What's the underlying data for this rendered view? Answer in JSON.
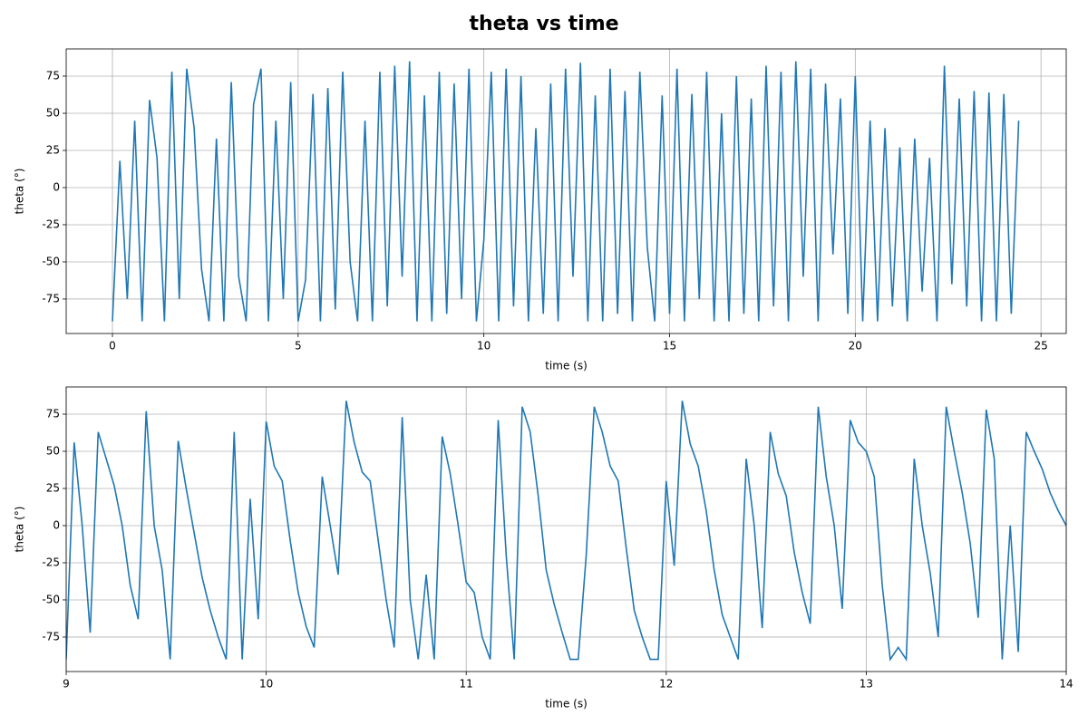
{
  "title": "theta vs time",
  "chart_data": [
    {
      "type": "line",
      "x_label": "time (s)",
      "y_label": "theta (°)",
      "color": "#1f77b4",
      "grid": true,
      "xlim": [
        -1.245,
        25.68
      ],
      "ylim": [
        -98.2,
        93.3
      ],
      "xticks": [
        0,
        5,
        10,
        15,
        20,
        25
      ],
      "yticks": [
        -75,
        -50,
        -25,
        0,
        25,
        50,
        75
      ],
      "x": [
        0,
        0.2,
        0.4,
        0.6,
        0.8,
        1,
        1.2,
        1.4,
        1.6,
        1.8,
        2,
        2.2,
        2.4,
        2.6,
        2.8,
        3,
        3.2,
        3.4,
        3.6,
        3.8,
        4,
        4.2,
        4.4,
        4.6,
        4.8,
        5,
        5.2,
        5.4,
        5.6,
        5.8,
        6,
        6.2,
        6.4,
        6.6,
        6.8,
        7,
        7.2,
        7.4,
        7.6,
        7.8,
        8,
        8.2,
        8.4,
        8.6,
        8.8,
        9,
        9.2,
        9.4,
        9.6,
        9.8,
        10,
        10.2,
        10.4,
        10.6,
        10.8,
        11,
        11.2,
        11.4,
        11.6,
        11.8,
        12,
        12.2,
        12.4,
        12.6,
        12.8,
        13,
        13.2,
        13.4,
        13.6,
        13.8,
        14,
        14.2,
        14.4,
        14.6,
        14.8,
        15,
        15.2,
        15.4,
        15.6,
        15.8,
        16,
        16.2,
        16.4,
        16.6,
        16.8,
        17,
        17.2,
        17.4,
        17.6,
        17.8,
        18,
        18.2,
        18.4,
        18.6,
        18.8,
        19,
        19.2,
        19.4,
        19.6,
        19.8,
        20,
        20.2,
        20.4,
        20.6,
        20.8,
        21,
        21.2,
        21.4,
        21.6,
        21.8,
        22,
        22.2,
        22.4,
        22.6,
        22.8,
        23,
        23.2,
        23.4,
        23.6,
        23.8,
        24,
        24.2,
        24.4
      ],
      "values": [
        -90,
        18,
        -75,
        45,
        -90,
        59,
        20,
        -90,
        78,
        -75,
        80,
        40,
        -55,
        -90,
        33,
        -90,
        71,
        -60,
        -90,
        56,
        80,
        -90,
        45,
        -75,
        71,
        -90,
        -62,
        63,
        -90,
        67,
        -82,
        78,
        -50,
        -90,
        45,
        -90,
        78,
        -80,
        82,
        -60,
        85,
        -90,
        62,
        -90,
        78,
        -85,
        70,
        -75,
        80,
        -90,
        -35,
        78,
        -90,
        80,
        -80,
        75,
        -90,
        40,
        -85,
        70,
        -90,
        80,
        -60,
        84,
        -90,
        62,
        -90,
        80,
        -85,
        65,
        -90,
        78,
        -40,
        -90,
        62,
        -85,
        80,
        -90,
        63,
        -75,
        78,
        -90,
        50,
        -90,
        75,
        -85,
        60,
        -90,
        82,
        -80,
        78,
        -90,
        85,
        -60,
        80,
        -90,
        70,
        -45,
        60,
        -85,
        75,
        -90,
        45,
        -90,
        40,
        -80,
        27,
        -90,
        33,
        -70,
        20,
        -90,
        82,
        -65,
        60,
        -80,
        65,
        -90,
        64,
        -90,
        63,
        -85,
        45
      ]
    },
    {
      "type": "line",
      "x_label": "time (s)",
      "y_label": "theta (°)",
      "color": "#1f77b4",
      "grid": true,
      "xlim": [
        9,
        14
      ],
      "ylim": [
        -98.2,
        93.3
      ],
      "xticks": [
        9,
        10,
        11,
        12,
        13,
        14
      ],
      "yticks": [
        -75,
        -50,
        -25,
        0,
        25,
        50,
        75
      ],
      "x": [
        9,
        9.04,
        9.08,
        9.12,
        9.16,
        9.2,
        9.24,
        9.28,
        9.32,
        9.36,
        9.4,
        9.44,
        9.48,
        9.52,
        9.56,
        9.6,
        9.64,
        9.68,
        9.72,
        9.76,
        9.8,
        9.84,
        9.88,
        9.92,
        9.96,
        10,
        10.04,
        10.08,
        10.12,
        10.16,
        10.2,
        10.24,
        10.28,
        10.32,
        10.36,
        10.4,
        10.44,
        10.48,
        10.52,
        10.56,
        10.6,
        10.64,
        10.68,
        10.72,
        10.76,
        10.8,
        10.84,
        10.88,
        10.92,
        10.96,
        11,
        11.04,
        11.08,
        11.12,
        11.16,
        11.2,
        11.24,
        11.28,
        11.32,
        11.36,
        11.4,
        11.44,
        11.48,
        11.52,
        11.56,
        11.6,
        11.64,
        11.68,
        11.72,
        11.76,
        11.8,
        11.84,
        11.88,
        11.92,
        11.96,
        12,
        12.04,
        12.08,
        12.12,
        12.16,
        12.2,
        12.24,
        12.28,
        12.32,
        12.36,
        12.4,
        12.44,
        12.48,
        12.52,
        12.56,
        12.6,
        12.64,
        12.68,
        12.72,
        12.76,
        12.8,
        12.84,
        12.88,
        12.92,
        12.96,
        13,
        13.04,
        13.08,
        13.12,
        13.16,
        13.2,
        13.24,
        13.28,
        13.32,
        13.36,
        13.4,
        13.44,
        13.48,
        13.52,
        13.56,
        13.6,
        13.64,
        13.68,
        13.72,
        13.76,
        13.8,
        13.84,
        13.88,
        13.92,
        13.96,
        14
      ],
      "values": [
        -90,
        56,
        0,
        -72,
        63,
        45,
        27,
        0,
        -40,
        -63,
        77,
        0,
        -30,
        -90,
        57,
        25,
        -5,
        -35,
        -57,
        -75,
        -90,
        63,
        -90,
        18,
        -63,
        70,
        40,
        30,
        -10,
        -45,
        -68,
        -82,
        33,
        0,
        -33,
        84,
        56,
        36,
        30,
        -10,
        -50,
        -82,
        73,
        -50,
        -90,
        -33,
        -90,
        60,
        35,
        0,
        -38,
        -45,
        -75,
        -90,
        71,
        -20,
        -90,
        80,
        63,
        20,
        -30,
        -53,
        -72,
        -90,
        -90,
        -20,
        80,
        63,
        40,
        30,
        -15,
        -57,
        -75,
        -90,
        -90,
        30,
        -27,
        84,
        55,
        40,
        10,
        -30,
        -60,
        -75,
        -90,
        45,
        0,
        -69,
        63,
        35,
        20,
        -18,
        -45,
        -66,
        80,
        33,
        0,
        -56,
        71,
        56,
        50,
        33,
        -40,
        -90,
        -82,
        -90,
        45,
        0,
        -32,
        -75,
        80,
        50,
        22,
        -12,
        -62,
        78,
        45,
        -90,
        0,
        -85,
        63,
        50,
        38,
        22,
        10,
        0
      ]
    }
  ]
}
